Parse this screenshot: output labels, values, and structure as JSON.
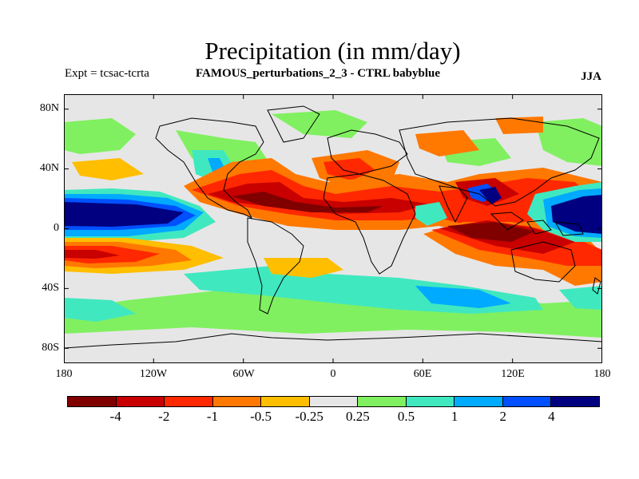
{
  "header": {
    "title": "Precipitation (in mm/day)",
    "left": "Expt = tcsac-tcrta",
    "center": "FAMOUS_perturbations_2_3 - CTRL babyblue",
    "right": "JJA"
  },
  "axes": {
    "lat_labels": [
      "80N",
      "40N",
      "0",
      "40S",
      "80S"
    ],
    "lon_labels": [
      "180",
      "120W",
      "60W",
      "0",
      "60E",
      "120E",
      "180"
    ]
  },
  "colorbar": {
    "colors": [
      "#800000",
      "#c80000",
      "#ff2800",
      "#ff7800",
      "#ffbe00",
      "#e6e6e6",
      "#80f060",
      "#40e8c0",
      "#00aaff",
      "#0050ff",
      "#000080"
    ],
    "labels": [
      "-4",
      "-2",
      "-1",
      "-0.5",
      "-0.25",
      "0.25",
      "0.5",
      "1",
      "2",
      "4"
    ]
  },
  "chart_data": {
    "type": "map",
    "projection": "cylindrical equidistant",
    "variable": "Precipitation difference (mm/day)",
    "season": "JJA",
    "lat_range": [
      -90,
      90
    ],
    "lon_range": [
      -180,
      180
    ],
    "contour_levels": [
      -4,
      -2,
      -1,
      -0.5,
      -0.25,
      0.25,
      0.5,
      1,
      2,
      4
    ]
  }
}
